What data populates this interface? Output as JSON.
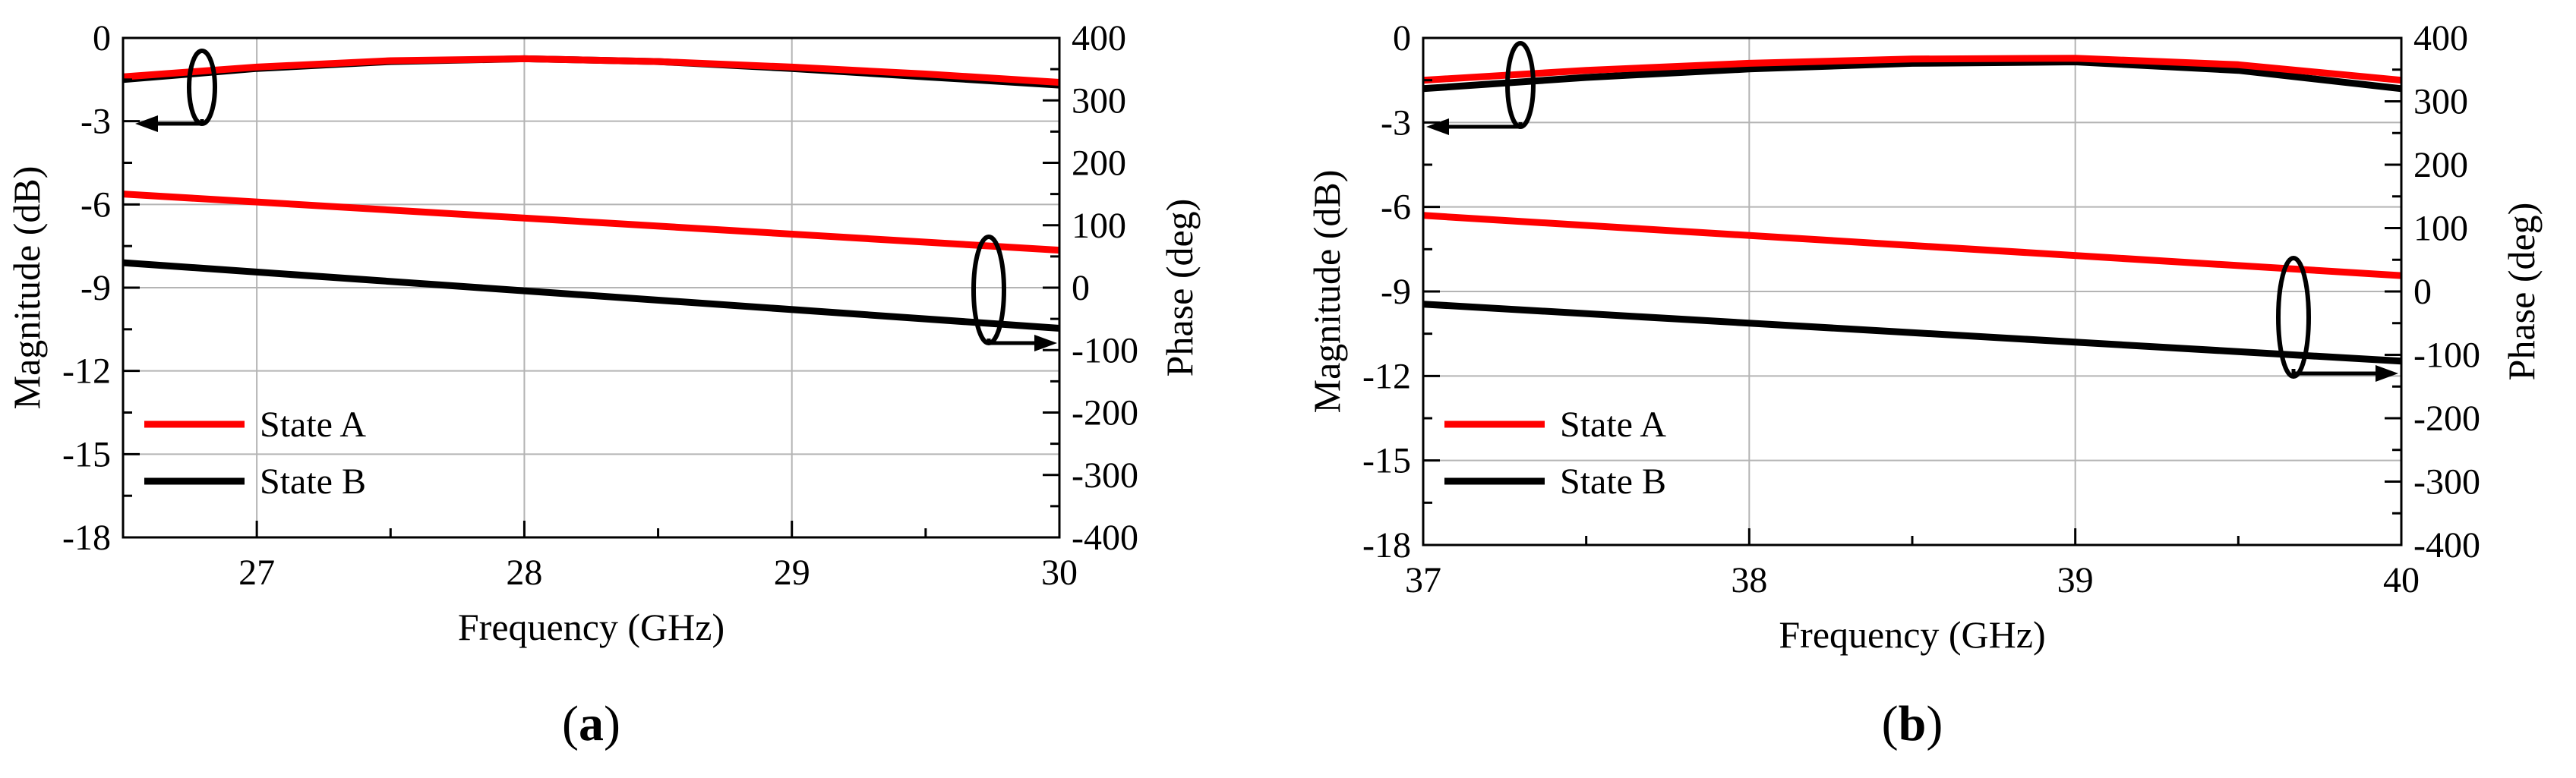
{
  "colors": {
    "state_a": "#ff0000",
    "state_b": "#000000",
    "grid": "#b4b4b4"
  },
  "chart_data": [
    {
      "panel_label": "(a)",
      "type": "line",
      "xlabel": "Frequency (GHz)",
      "ylabel_left": "Magnitude (dB)",
      "ylabel_right": "Phase (deg)",
      "xlim": [
        26.5,
        30
      ],
      "xticks": [
        27,
        28,
        29,
        30
      ],
      "ylim_left": [
        -18,
        0
      ],
      "yticks_left": [
        0,
        -3,
        -6,
        -9,
        -12,
        -15,
        -18
      ],
      "ylim_right": [
        -400,
        400
      ],
      "yticks_right": [
        400,
        300,
        200,
        100,
        0,
        -100,
        -200,
        -300,
        -400
      ],
      "grid": true,
      "legend": [
        "State A",
        "State B"
      ],
      "series": [
        {
          "name": "State A",
          "axis": "left",
          "quantity": "magnitude",
          "x": [
            26.5,
            27.0,
            27.5,
            28.0,
            28.5,
            29.0,
            29.5,
            30.0
          ],
          "y": [
            -1.4,
            -1.05,
            -0.82,
            -0.75,
            -0.85,
            -1.05,
            -1.3,
            -1.6
          ]
        },
        {
          "name": "State B",
          "axis": "left",
          "quantity": "magnitude",
          "x": [
            26.5,
            27.0,
            27.5,
            28.0,
            28.5,
            29.0,
            29.5,
            30.0
          ],
          "y": [
            -1.5,
            -1.1,
            -0.85,
            -0.75,
            -0.85,
            -1.1,
            -1.4,
            -1.7
          ]
        },
        {
          "name": "State A",
          "axis": "right",
          "quantity": "phase",
          "x": [
            26.5,
            30.0
          ],
          "y": [
            150,
            60
          ]
        },
        {
          "name": "State B",
          "axis": "right",
          "quantity": "phase",
          "x": [
            26.5,
            30.0
          ],
          "y": [
            40,
            -65
          ]
        }
      ]
    },
    {
      "panel_label": "(b)",
      "type": "line",
      "xlabel": "Frequency (GHz)",
      "ylabel_left": "Magnitude (dB)",
      "ylabel_right": "Phase (deg)",
      "xlim": [
        37,
        40
      ],
      "xticks": [
        37,
        38,
        39,
        40
      ],
      "ylim_left": [
        -18,
        0
      ],
      "yticks_left": [
        0,
        -3,
        -6,
        -9,
        -12,
        -15,
        -18
      ],
      "ylim_right": [
        -400,
        400
      ],
      "yticks_right": [
        400,
        300,
        200,
        100,
        0,
        -100,
        -200,
        -300,
        -400
      ],
      "grid": true,
      "legend": [
        "State A",
        "State B"
      ],
      "series": [
        {
          "name": "State A",
          "axis": "left",
          "quantity": "magnitude",
          "x": [
            37.0,
            37.5,
            38.0,
            38.5,
            39.0,
            39.5,
            40.0
          ],
          "y": [
            -1.5,
            -1.15,
            -0.9,
            -0.75,
            -0.72,
            -0.95,
            -1.5
          ]
        },
        {
          "name": "State B",
          "axis": "left",
          "quantity": "magnitude",
          "x": [
            37.0,
            37.5,
            38.0,
            38.5,
            39.0,
            39.5,
            40.0
          ],
          "y": [
            -1.8,
            -1.4,
            -1.1,
            -0.9,
            -0.85,
            -1.15,
            -1.8
          ]
        },
        {
          "name": "State A",
          "axis": "right",
          "quantity": "phase",
          "x": [
            37.0,
            40.0
          ],
          "y": [
            120,
            25
          ]
        },
        {
          "name": "State B",
          "axis": "right",
          "quantity": "phase",
          "x": [
            37.0,
            40.0
          ],
          "y": [
            -20,
            -110
          ]
        }
      ]
    }
  ]
}
